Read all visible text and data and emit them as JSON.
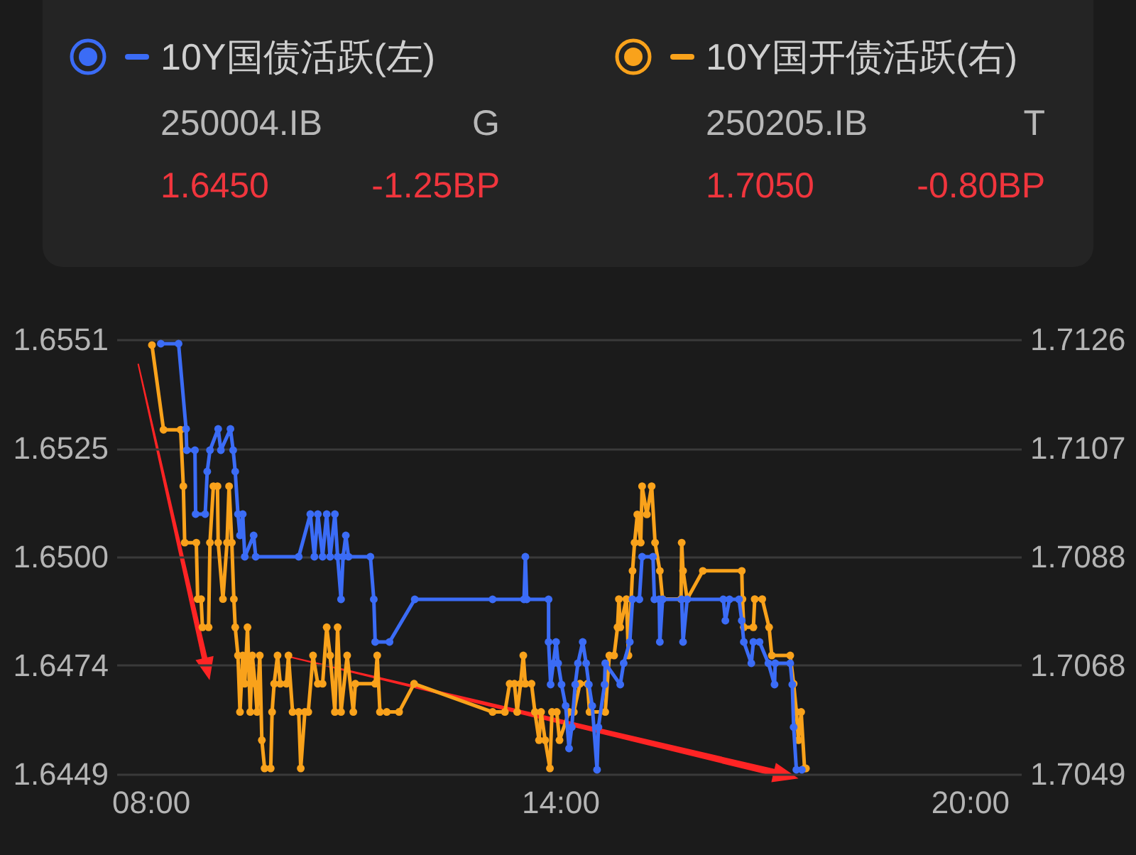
{
  "chart_data": {
    "type": "line",
    "legend": "top",
    "grid": "y",
    "marker": "circle",
    "line_style": "solid",
    "xlim": [
      7.5,
      20.75
    ],
    "xticks": [
      {
        "value": 8,
        "label": "08:00"
      },
      {
        "value": 14,
        "label": "14:00"
      },
      {
        "value": 20,
        "label": "20:00"
      }
    ],
    "ylim": [
      1.6449,
      1.6551
    ],
    "yticks": [
      1.6449,
      {
        "value": 1.64745,
        "label": "1.6474"
      },
      {
        "value": 1.65,
        "label": "1.6500"
      },
      {
        "value": 1.65255,
        "label": "1.6525"
      },
      1.6551
    ],
    "y2lim": [
      1.7049,
      1.7126
    ],
    "y2ticks": [
      1.7049,
      {
        "value": 1.706825,
        "label": "1.7068"
      },
      {
        "value": 1.70875,
        "label": "1.7088"
      },
      {
        "value": 1.710675,
        "label": "1.7107"
      },
      1.7126
    ],
    "annotations": [
      "250004.IB",
      "G",
      "1.6450",
      "-1.25BP",
      "250205.IB",
      "T",
      "1.7050",
      "-0.80BP"
    ],
    "series": [
      {
        "name": "10Y国债活跃(左)",
        "color": "#3b6cf6",
        "x": [
          8.15,
          8.41,
          8.52,
          8.53,
          8.65,
          8.66,
          8.8,
          8.83,
          8.87,
          8.99,
          9.03,
          9.17,
          9.21,
          9.24,
          9.28,
          9.31,
          9.35,
          9.38,
          9.51,
          9.54,
          10.17,
          10.34,
          10.4,
          10.45,
          10.52,
          10.58,
          10.63,
          10.7,
          10.74,
          10.79,
          10.82,
          10.86,
          10.9,
          11.22,
          11.27,
          11.29,
          11.5,
          11.87,
          13.01,
          13.47,
          13.49,
          13.51,
          13.83,
          13.83,
          13.86,
          13.9,
          13.94,
          13.97,
          14.02,
          14.08,
          14.13,
          14.17,
          14.22,
          14.26,
          14.33,
          14.38,
          14.42,
          14.47,
          14.54,
          14.56,
          14.65,
          14.66,
          14.88,
          14.93,
          15.02,
          15.06,
          15.16,
          15.2,
          15.36,
          15.38,
          15.45,
          15.46,
          15.5,
          15.78,
          15.8,
          15.86,
          16.39,
          16.42,
          16.48,
          16.62,
          16.66,
          16.69,
          16.8,
          16.83,
          16.92,
          17.05,
          17.14,
          17.15,
          17.37,
          17.4,
          17.42,
          17.46,
          17.54
        ],
        "values": [
          1.655,
          1.655,
          1.653,
          1.6525,
          1.6525,
          1.651,
          1.651,
          1.652,
          1.6525,
          1.653,
          1.6525,
          1.653,
          1.6525,
          1.652,
          1.651,
          1.6505,
          1.651,
          1.65,
          1.6505,
          1.65,
          1.65,
          1.651,
          1.65,
          1.651,
          1.65,
          1.651,
          1.65,
          1.651,
          1.65,
          1.649,
          1.65,
          1.6505,
          1.65,
          1.65,
          1.649,
          1.648,
          1.648,
          1.649,
          1.649,
          1.649,
          1.65,
          1.649,
          1.649,
          1.648,
          1.647,
          1.6475,
          1.648,
          1.6475,
          1.647,
          1.6465,
          1.6455,
          1.646,
          1.647,
          1.6475,
          1.648,
          1.6475,
          1.647,
          1.6465,
          1.645,
          1.646,
          1.647,
          1.6475,
          1.647,
          1.6475,
          1.648,
          1.649,
          1.649,
          1.65,
          1.65,
          1.649,
          1.649,
          1.648,
          1.649,
          1.649,
          1.648,
          1.649,
          1.649,
          1.6485,
          1.649,
          1.649,
          1.6485,
          1.648,
          1.6475,
          1.648,
          1.648,
          1.6475,
          1.647,
          1.6475,
          1.6475,
          1.647,
          1.646,
          1.645,
          1.645
        ]
      },
      {
        "name": "10Y国开债活跃(右)",
        "color": "#f9a21b",
        "axis": "y2",
        "x": [
          8.02,
          8.19,
          8.44,
          8.48,
          8.5,
          8.67,
          8.69,
          8.74,
          8.76,
          8.85,
          8.87,
          8.92,
          8.98,
          8.99,
          9.06,
          9.12,
          9.15,
          9.19,
          9.22,
          9.24,
          9.28,
          9.31,
          9.35,
          9.38,
          9.42,
          9.46,
          9.49,
          9.53,
          9.56,
          9.6,
          9.63,
          9.67,
          9.76,
          9.78,
          9.81,
          9.86,
          9.9,
          9.99,
          10.02,
          10.08,
          10.17,
          10.2,
          10.26,
          10.31,
          10.38,
          10.45,
          10.52,
          10.58,
          10.63,
          10.7,
          10.74,
          10.79,
          10.88,
          10.97,
          11,
          11.29,
          11.32,
          11.36,
          11.46,
          11.64,
          11.86,
          13.01,
          13.19,
          13.26,
          13.33,
          13.37,
          13.42,
          13.46,
          13.49,
          13.58,
          13.63,
          13.69,
          13.72,
          13.78,
          13.85,
          13.88,
          13.95,
          13.99,
          14.13,
          14.2,
          14.29,
          14.4,
          14.43,
          14.66,
          14.72,
          14.79,
          14.84,
          14.86,
          14.88,
          14.97,
          15,
          15.06,
          15.09,
          15.13,
          15.18,
          15.2,
          15.27,
          15.34,
          15.39,
          15.46,
          15.5,
          15.77,
          15.78,
          15.8,
          15.86,
          16.09,
          16.66,
          16.67,
          16.69,
          16.83,
          16.85,
          16.96,
          17.06,
          17.1,
          17.37,
          17.42,
          17.46,
          17.49,
          17.53,
          17.58,
          17.6
        ],
        "values": [
          1.7125,
          1.711,
          1.711,
          1.71,
          1.709,
          1.709,
          1.708,
          1.708,
          1.7075,
          1.7075,
          1.709,
          1.71,
          1.71,
          1.709,
          1.708,
          1.709,
          1.71,
          1.709,
          1.708,
          1.7075,
          1.707,
          1.706,
          1.707,
          1.7065,
          1.7075,
          1.706,
          1.707,
          1.7065,
          1.706,
          1.707,
          1.7055,
          1.705,
          1.705,
          1.706,
          1.7065,
          1.707,
          1.7065,
          1.7065,
          1.707,
          1.706,
          1.706,
          1.705,
          1.706,
          1.706,
          1.707,
          1.7065,
          1.7065,
          1.7075,
          1.707,
          1.706,
          1.7075,
          1.706,
          1.707,
          1.706,
          1.7065,
          1.7065,
          1.707,
          1.706,
          1.706,
          1.706,
          1.7065,
          1.706,
          1.706,
          1.7065,
          1.7065,
          1.706,
          1.7065,
          1.707,
          1.7065,
          1.7065,
          1.706,
          1.7055,
          1.706,
          1.7055,
          1.705,
          1.706,
          1.706,
          1.7055,
          1.706,
          1.706,
          1.7065,
          1.7065,
          1.706,
          1.706,
          1.707,
          1.707,
          1.7075,
          1.708,
          1.7075,
          1.708,
          1.707,
          1.7085,
          1.709,
          1.7095,
          1.709,
          1.71,
          1.7095,
          1.71,
          1.709,
          1.7085,
          1.708,
          1.708,
          1.709,
          1.7085,
          1.708,
          1.7085,
          1.7085,
          1.708,
          1.7075,
          1.7075,
          1.708,
          1.708,
          1.7075,
          1.707,
          1.707,
          1.7065,
          1.706,
          1.7055,
          1.706,
          1.705,
          1.705
        ]
      }
    ]
  }
}
